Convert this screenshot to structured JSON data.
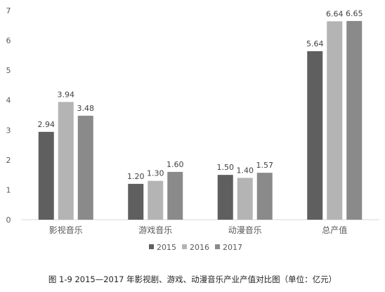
{
  "chart_data": {
    "type": "bar",
    "categories": [
      "影视音乐",
      "游戏音乐",
      "动漫音乐",
      "总产值"
    ],
    "series": [
      {
        "name": "2015",
        "values": [
          2.94,
          1.2,
          1.5,
          5.64
        ],
        "labels": [
          "2.94",
          "1.20",
          "1.50",
          "5.64"
        ],
        "color": "#5f5f5f"
      },
      {
        "name": "2016",
        "values": [
          3.94,
          1.3,
          1.4,
          6.64
        ],
        "labels": [
          "3.94",
          "1.30",
          "1.40",
          "6.64"
        ],
        "color": "#b4b4b4"
      },
      {
        "name": "2017",
        "values": [
          3.48,
          1.6,
          1.57,
          6.65
        ],
        "labels": [
          "3.48",
          "1.60",
          "1.57",
          "6.65"
        ],
        "color": "#8a8a8a"
      }
    ],
    "y_ticks": [
      "0",
      "1",
      "2",
      "3",
      "4",
      "5",
      "6",
      "7"
    ],
    "ylim": [
      0,
      7
    ],
    "grid": false,
    "legend_position": "bottom",
    "axis_color": "#d9d9d9"
  },
  "caption": "图 1-9  2015—2017 年影视剧、游戏、动漫音乐产业产值对比图（单位：亿元）"
}
